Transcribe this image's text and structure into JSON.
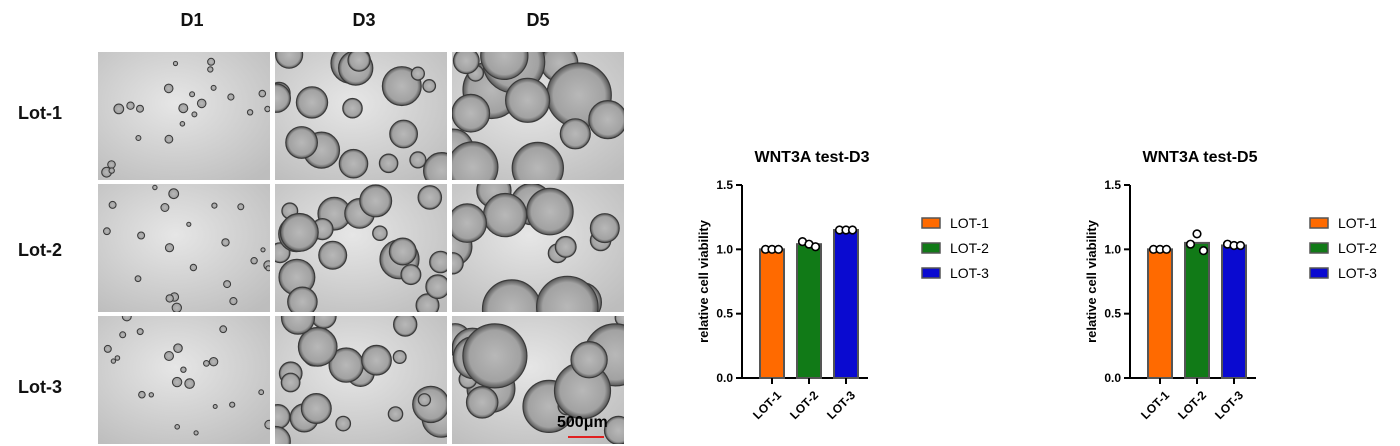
{
  "micrographs": {
    "columns": [
      "D1",
      "D3",
      "D5"
    ],
    "rows": [
      "Lot-1",
      "Lot-2",
      "Lot-3"
    ],
    "scale_bar_label": "500μm"
  },
  "chart_data": [
    {
      "type": "bar",
      "title": "WNT3A test-D3",
      "xlabel": "",
      "ylabel": "relative cell viability",
      "ylim": [
        0,
        1.5
      ],
      "yticks": [
        "0.0",
        "0.5",
        "1.0",
        "1.5"
      ],
      "categories": [
        "LOT-1",
        "LOT-2",
        "LOT-3"
      ],
      "values": [
        1.0,
        1.04,
        1.15
      ],
      "points": [
        [
          1.0,
          1.0,
          1.0
        ],
        [
          1.06,
          1.04,
          1.02
        ],
        [
          1.15,
          1.15,
          1.15
        ]
      ],
      "colors": [
        "#ff6a00",
        "#117a17",
        "#0a0ad0"
      ],
      "legend": [
        "LOT-1",
        "LOT-2",
        "LOT-3"
      ]
    },
    {
      "type": "bar",
      "title": "WNT3A test-D5",
      "xlabel": "",
      "ylabel": "relative cell viability",
      "ylim": [
        0,
        1.5
      ],
      "yticks": [
        "0.0",
        "0.5",
        "1.0",
        "1.5"
      ],
      "categories": [
        "LOT-1",
        "LOT-2",
        "LOT-3"
      ],
      "values": [
        1.0,
        1.05,
        1.03
      ],
      "points": [
        [
          1.0,
          1.0,
          1.0
        ],
        [
          1.04,
          1.12,
          0.99
        ],
        [
          1.04,
          1.03,
          1.03
        ]
      ],
      "colors": [
        "#ff6a00",
        "#117a17",
        "#0a0ad0"
      ],
      "legend": [
        "LOT-1",
        "LOT-2",
        "LOT-3"
      ]
    }
  ]
}
